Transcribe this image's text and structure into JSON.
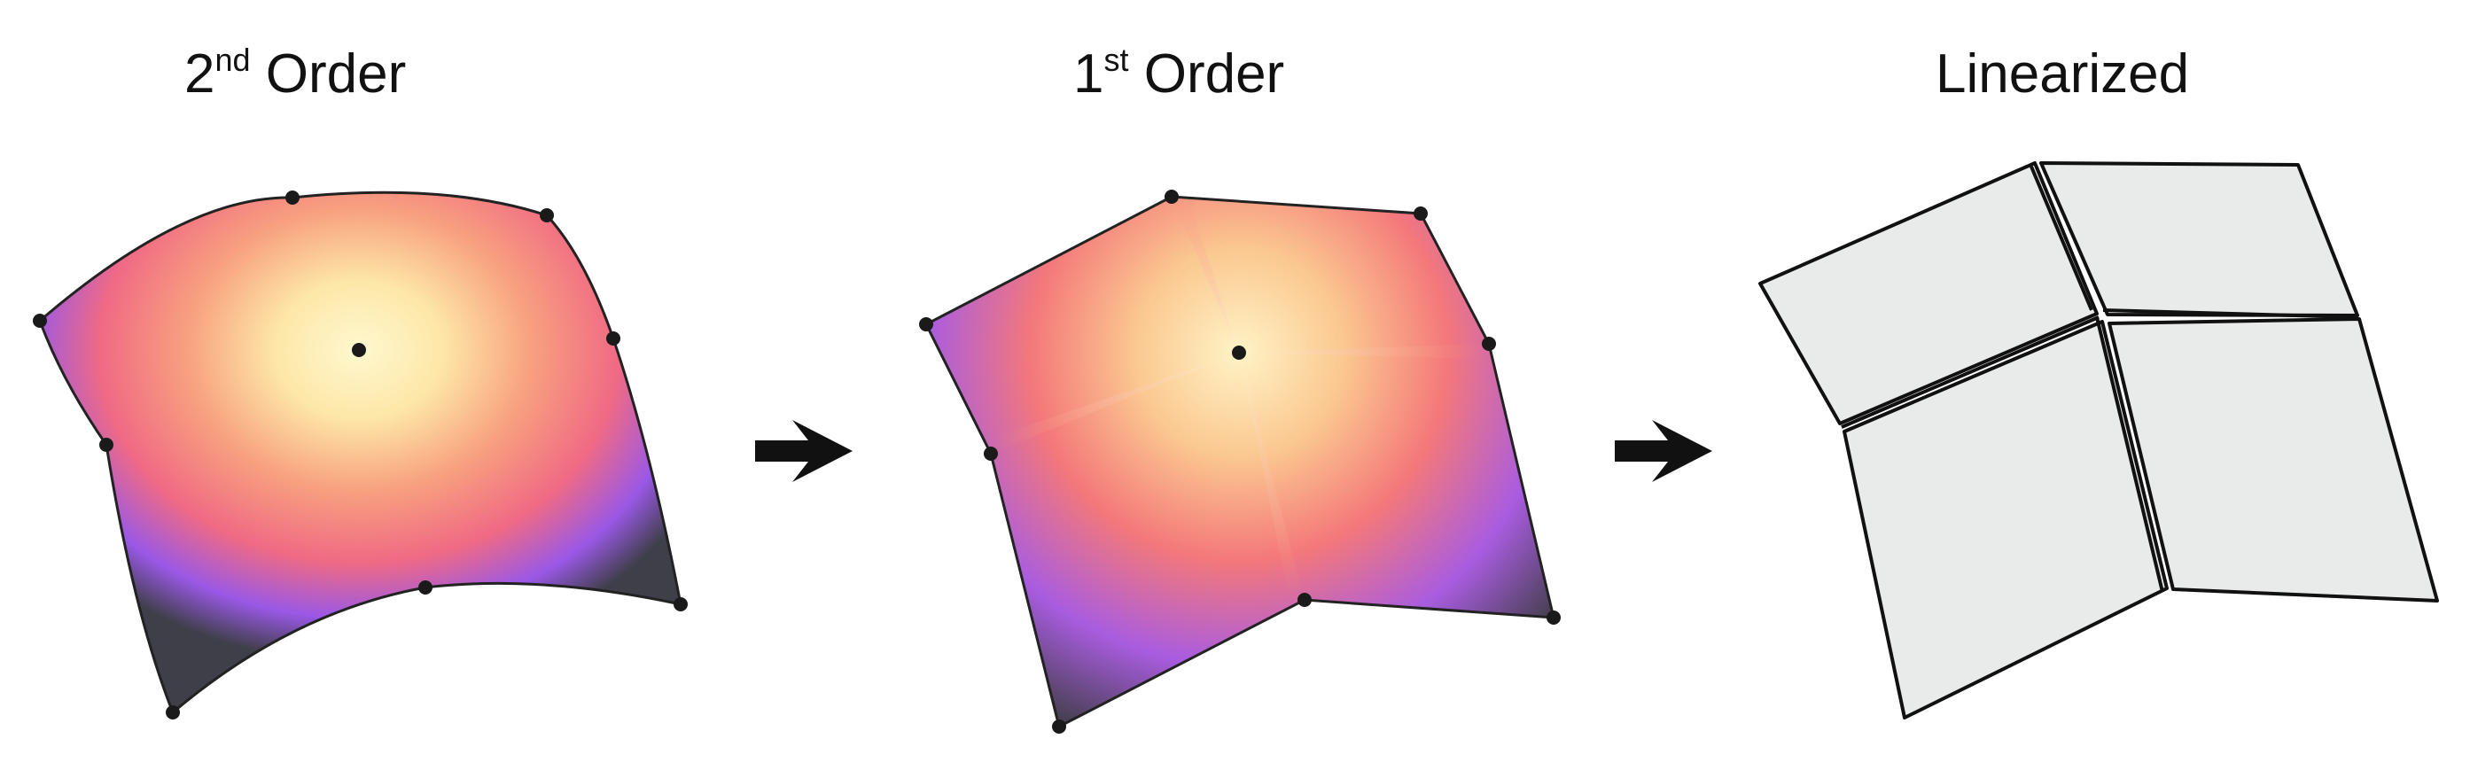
{
  "figure": {
    "panels": [
      {
        "id": "second-order",
        "title_main": "2",
        "title_sup": "nd",
        "title_rest": " Order"
      },
      {
        "id": "first-order",
        "title_main": "1",
        "title_sup": "st",
        "title_rest": " Order"
      },
      {
        "id": "linearized",
        "title_main": "Linearized",
        "title_sup": "",
        "title_rest": ""
      }
    ],
    "colors": {
      "center": "#fff6c4",
      "mid": "#f7c694",
      "warm": "#f56f73",
      "edge": "#8d56ee",
      "corner": "#404040",
      "tile_fill": "#e9ebeb",
      "stroke": "#111111"
    },
    "arrow_icons": [
      "right-arrow-icon",
      "right-arrow-icon"
    ]
  }
}
